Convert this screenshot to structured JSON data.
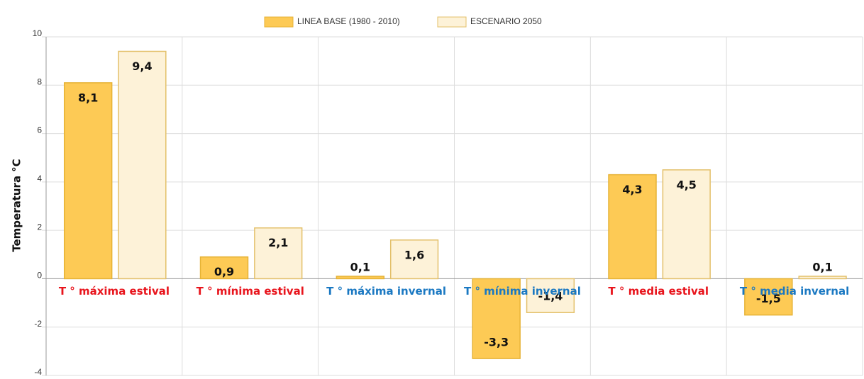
{
  "chart_data": {
    "type": "bar",
    "y_label": "Temperatura °C",
    "categories": [
      "T ° máxima estival",
      "T ° mínima estival",
      "T ° máxima invernal",
      "T ° mínima invernal",
      "T ° media estival",
      "T ° media invernal"
    ],
    "category_colors": [
      "#e8141c",
      "#e8141c",
      "#1a78c2",
      "#1a78c2",
      "#e8141c",
      "#1a78c2"
    ],
    "series": [
      {
        "name": "LINEA BASE (1980 - 2010)",
        "color": "#fdca55",
        "stroke": "#e6b235",
        "values": [
          8.1,
          0.9,
          0.1,
          -3.3,
          4.3,
          -1.5
        ],
        "value_labels": [
          "8,1",
          "0,9",
          "0,1",
          "-3,3",
          "4,3",
          "-1,5"
        ]
      },
      {
        "name": "ESCENARIO 2050",
        "color": "#fdf2d8",
        "stroke": "#e3c06a",
        "values": [
          9.4,
          2.1,
          1.6,
          -1.4,
          4.5,
          0.1
        ],
        "value_labels": [
          "9,4",
          "2,1",
          "1,6",
          "-1,4",
          "4,5",
          "0,1"
        ]
      }
    ],
    "ylim": [
      -4,
      10
    ],
    "yticks": [
      -4,
      -2,
      0,
      2,
      4,
      6,
      8,
      10
    ],
    "grid": true,
    "legend": "top"
  }
}
